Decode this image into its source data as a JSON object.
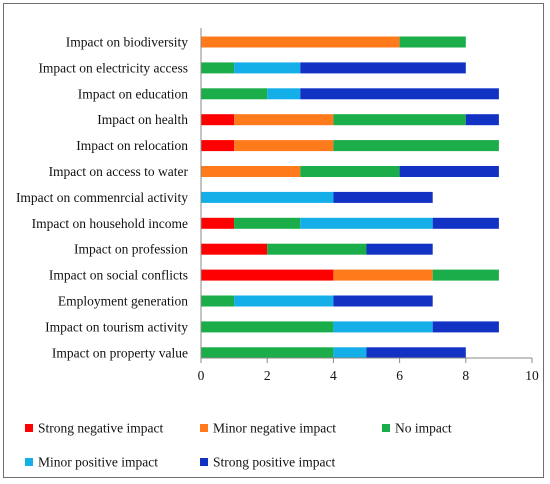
{
  "chart_data": {
    "type": "bar",
    "orientation": "horizontal",
    "stacked": true,
    "categories": [
      "Impact on biodiversity",
      "Impact on electricity access",
      "Impact on education",
      "Impact on health",
      "Impact on relocation",
      "Impact on access to water",
      "Impact on commenrcial activity",
      "Impact on household income",
      "Impact on profession",
      "Impact on social conflicts",
      "Employment generation",
      "Impact on tourism activity",
      "Impact on property value"
    ],
    "series": [
      {
        "name": "Strong negative impact",
        "color": "#ff0000",
        "values": [
          0,
          0,
          0,
          1,
          1,
          0,
          0,
          1,
          2,
          4,
          0,
          0,
          0
        ]
      },
      {
        "name": "Minor negative impact",
        "color": "#ff7a1a",
        "values": [
          6,
          0,
          0,
          3,
          3,
          3,
          0,
          0,
          0,
          3,
          0,
          0,
          0
        ]
      },
      {
        "name": "No impact",
        "color": "#1aad4a",
        "values": [
          2,
          1,
          2,
          4,
          5,
          3,
          0,
          2,
          3,
          2,
          1,
          4,
          4
        ]
      },
      {
        "name": "Minor positive impact",
        "color": "#14aee8",
        "values": [
          0,
          2,
          1,
          0,
          0,
          0,
          4,
          4,
          0,
          0,
          3,
          3,
          1
        ]
      },
      {
        "name": "Strong positive impact",
        "color": "#1232c4",
        "values": [
          0,
          5,
          6,
          1,
          0,
          3,
          3,
          2,
          2,
          0,
          3,
          2,
          3
        ]
      }
    ],
    "xlim": [
      0,
      10
    ],
    "xticks": [
      0,
      2,
      4,
      6,
      8,
      10
    ],
    "grid": false,
    "legend_position": "bottom"
  }
}
